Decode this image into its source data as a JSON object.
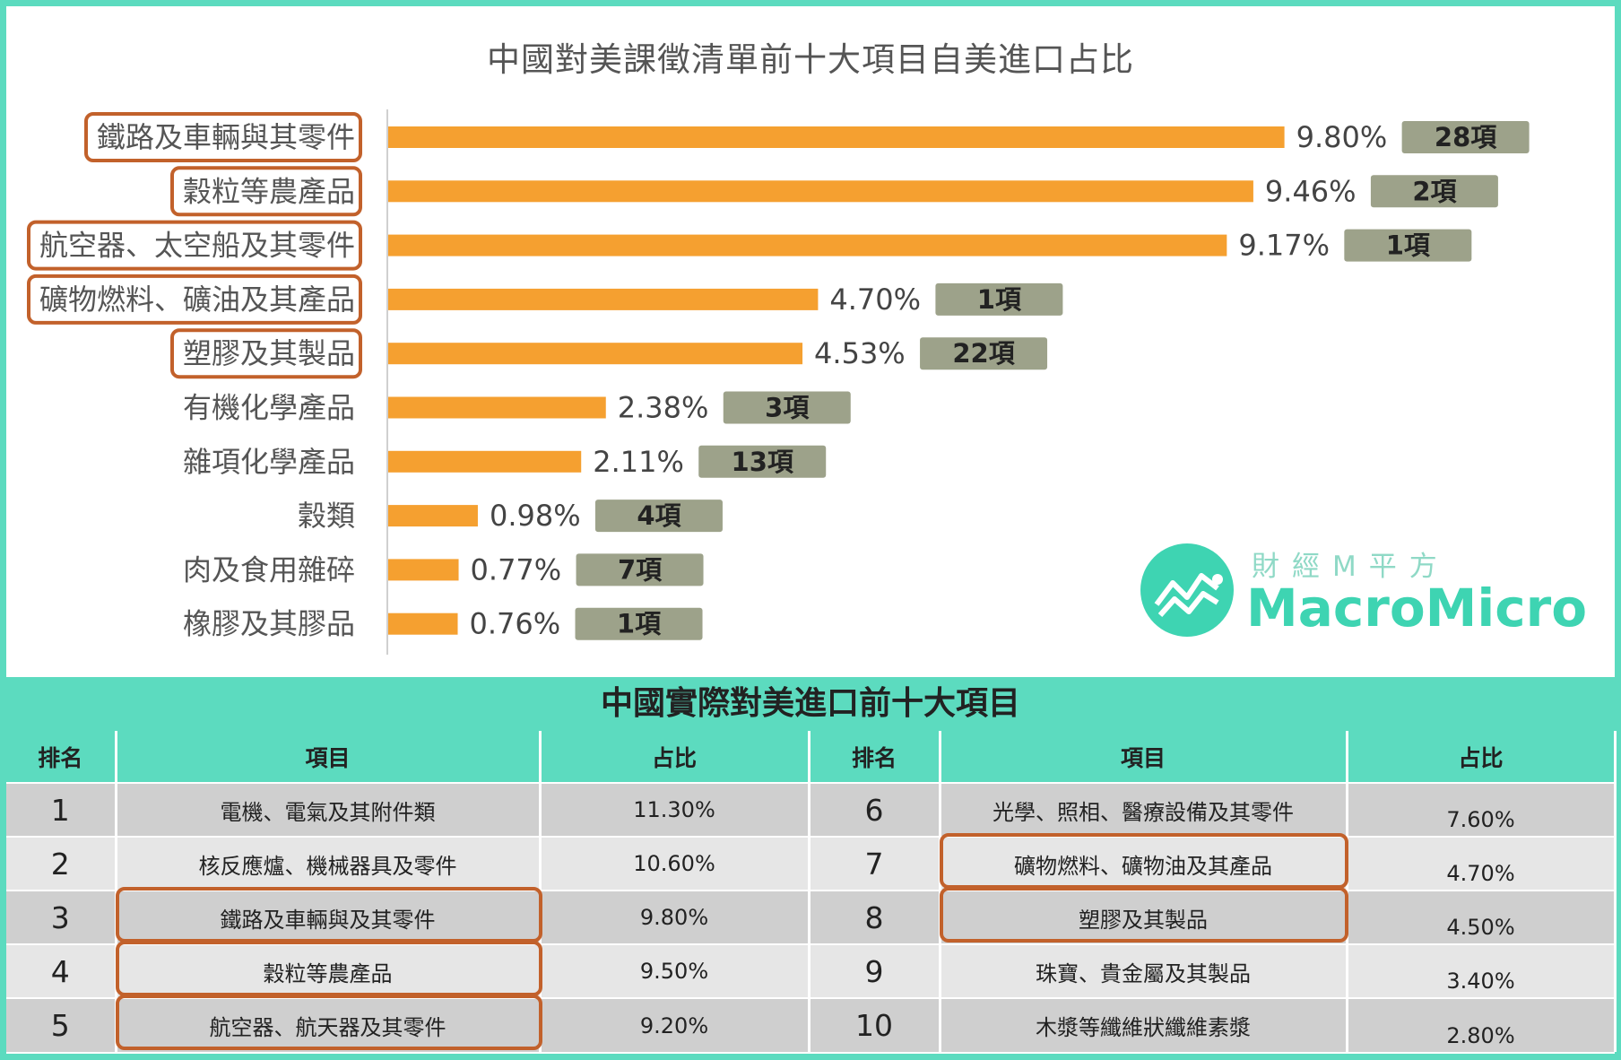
{
  "chart_data": {
    "type": "bar",
    "title": "中國對美課徵清單前十大項目自美進口占比",
    "categories": [
      "鐵路及車輛與其零件",
      "穀粒等農產品",
      "航空器、太空船及其零件",
      "礦物燃料、礦油及其產品",
      "塑膠及其製品",
      "有機化學產品",
      "雜項化學產品",
      "穀類",
      "肉及食用雜碎",
      "橡膠及其膠品"
    ],
    "values": [
      9.8,
      9.46,
      9.17,
      4.7,
      4.53,
      2.38,
      2.11,
      0.98,
      0.77,
      0.76
    ],
    "value_labels": [
      "9.80%",
      "9.46%",
      "9.17%",
      "4.70%",
      "4.53%",
      "2.38%",
      "2.11%",
      "0.98%",
      "0.77%",
      "0.76%"
    ],
    "item_counts": [
      "28項",
      "2項",
      "1項",
      "1項",
      "22項",
      "3項",
      "13項",
      "4項",
      "7項",
      "1項"
    ],
    "highlighted_categories": [
      0,
      1,
      2,
      3,
      4
    ],
    "orientation": "horizontal",
    "xlim": [
      0,
      10
    ],
    "grid": false,
    "colors": {
      "bar": "#f5a030",
      "count_badge": "#9da28a",
      "highlight": "#c2612b"
    }
  },
  "logo": {
    "chinese": "財經M平方",
    "english": "MacroMicro"
  },
  "table": {
    "title": "中國實際對美進口前十大項目",
    "headers": [
      "排名",
      "項目",
      "占比",
      "排名",
      "項目",
      "占比"
    ],
    "rows": [
      {
        "rank_l": "1",
        "item_l": "電機、電氣及其附件類",
        "pct_l": "11.30%",
        "rank_r": "6",
        "item_r": "光學、照相、醫療設備及其零件",
        "pct_r": "7.60%"
      },
      {
        "rank_l": "2",
        "item_l": "核反應爐、機械器具及零件",
        "pct_l": "10.60%",
        "rank_r": "7",
        "item_r": "礦物燃料、礦物油及其產品",
        "pct_r": "4.70%"
      },
      {
        "rank_l": "3",
        "item_l": "鐵路及車輛與及其零件",
        "pct_l": "9.80%",
        "rank_r": "8",
        "item_r": "塑膠及其製品",
        "pct_r": "4.50%"
      },
      {
        "rank_l": "4",
        "item_l": "穀粒等農產品",
        "pct_l": "9.50%",
        "rank_r": "9",
        "item_r": "珠寶、貴金屬及其製品",
        "pct_r": "3.40%"
      },
      {
        "rank_l": "5",
        "item_l": "航空器、航天器及其零件",
        "pct_l": "9.20%",
        "rank_r": "10",
        "item_r": "木漿等纖維狀纖維素漿",
        "pct_r": "2.80%"
      }
    ]
  }
}
